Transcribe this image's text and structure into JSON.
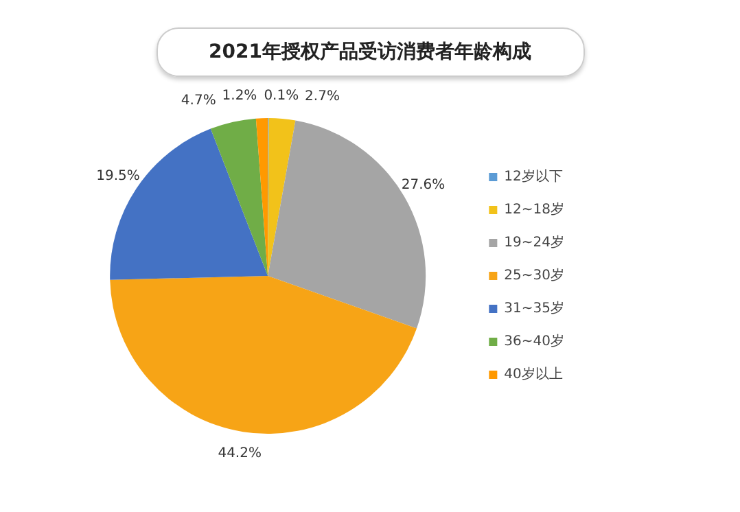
{
  "chart_data": {
    "type": "pie",
    "title": "2021年授权产品受访消费者年龄构成",
    "categories": [
      "12岁以下",
      "12~18岁",
      "19~24岁",
      "25~30岁",
      "31~35岁",
      "36~40岁",
      "40岁以上"
    ],
    "values": [
      0.1,
      2.7,
      27.6,
      44.2,
      19.5,
      4.7,
      1.2
    ],
    "value_labels": [
      "0.1%",
      "2.7%",
      "27.6%",
      "44.2%",
      "19.5%",
      "4.7%",
      "1.2%"
    ],
    "colors": [
      "#5b9bd5",
      "#f2c21a",
      "#a5a5a5",
      "#f7a416",
      "#4472c4",
      "#70ad47",
      "#ff9900"
    ],
    "legend": "right"
  }
}
